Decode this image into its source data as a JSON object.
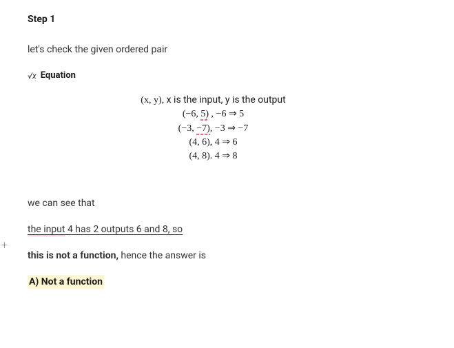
{
  "step": {
    "title": "Step 1"
  },
  "intro": "let's check the given ordered pair",
  "eq_header": {
    "icon": "√x",
    "label": "Equation"
  },
  "math": {
    "line1_left": "(x, y), ",
    "line1_right": "x is the input, y is the output",
    "line2_left": "(−6, ",
    "line2_mid": "5)",
    "line2_right": " , −6 ⇒ 5",
    "line3_left": "(−3, ",
    "line3_mid": "−7)",
    "line3_right": ", −3 ⇒ −7",
    "line4": "(4, 6), 4 ⇒ 6",
    "line5": "(4, 8). 4 ⇒ 8"
  },
  "followup1": "we can see that",
  "followup2_underlined": "the input",
  "followup2_rest": " 4 has 2 outputs 6 and 8, so",
  "followup3_bold": "this is not a function,",
  "followup3_rest": " hence the answer is",
  "answer": "A) Not a function",
  "plus": "+"
}
